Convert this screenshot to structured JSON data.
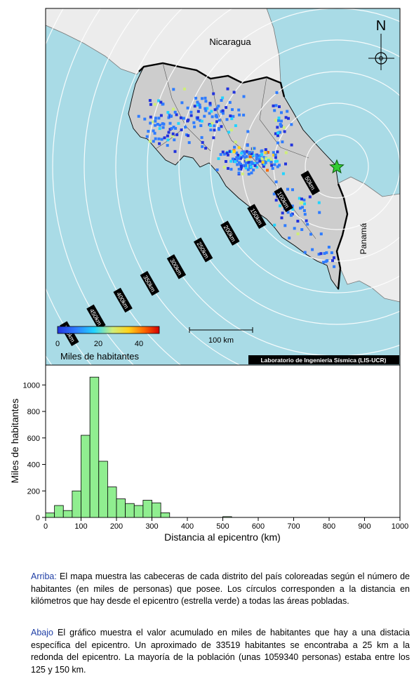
{
  "map": {
    "country_labels": {
      "nicaragua": "Nicaragua",
      "panama": "Panamá"
    },
    "north_label": "N",
    "scale_label": "100 km",
    "credit": "Laboratorio de Ingeniería Sísmica (LIS-UCR)",
    "colorbar": {
      "title": "Miles de habitantes",
      "ticks": [
        "0",
        "20",
        "40"
      ],
      "range": [
        0,
        50
      ],
      "colors": [
        "#2233dd",
        "#2f7cff",
        "#22d4ff",
        "#cfee7a",
        "#ffd21a",
        "#ff6a00",
        "#d40000"
      ]
    },
    "distance_rings_km": [
      "50km",
      "100km",
      "150km",
      "200km",
      "250km",
      "300km",
      "350km",
      "400km",
      "450km",
      "500km"
    ],
    "colors": {
      "sea": "#a9dbe6",
      "costa_rica": "#cdcdcd",
      "neighbors": "#ececec",
      "epicenter": "#33cc33"
    }
  },
  "caption": {
    "top_label": "Arriba:",
    "top_text": " El mapa muestra las cabeceras de cada distrito del país coloreadas según el número de habitantes (en miles de personas) que posee.  Los círculos corresponden a la distancia en kilómetros que hay desde el epicentro (estrella verde) a todas las áreas pobladas.",
    "bottom_label": "Abajo",
    "bottom_text": " El gráfico muestra el valor acumulado en miles de habitantes que hay a una distacia específica del epicentro.  Un aproximado de 33519 habitantes se encontraba a 25 km a la redonda del epicentro.  La mayoría de la población (unas 1059340 personas) estaba entre los 125 y 150 km."
  },
  "chart_data": {
    "type": "bar",
    "xlabel": "Distancia al epicentro (km)",
    "ylabel": "Miles de habitantes",
    "xlim": [
      0,
      1000
    ],
    "ylim": [
      0,
      1150
    ],
    "xticks": [
      0,
      100,
      200,
      300,
      400,
      500,
      600,
      700,
      800,
      900,
      1000
    ],
    "yticks": [
      0,
      200,
      400,
      600,
      800,
      1000
    ],
    "bin_width": 25,
    "bin_starts": [
      0,
      25,
      50,
      75,
      100,
      125,
      150,
      175,
      200,
      225,
      250,
      275,
      300,
      325,
      500
    ],
    "values": [
      33.5,
      90,
      52,
      200,
      620,
      1059,
      424,
      230,
      140,
      105,
      90,
      130,
      110,
      35,
      6
    ],
    "bar_color": "#90ee90",
    "grid": false
  }
}
